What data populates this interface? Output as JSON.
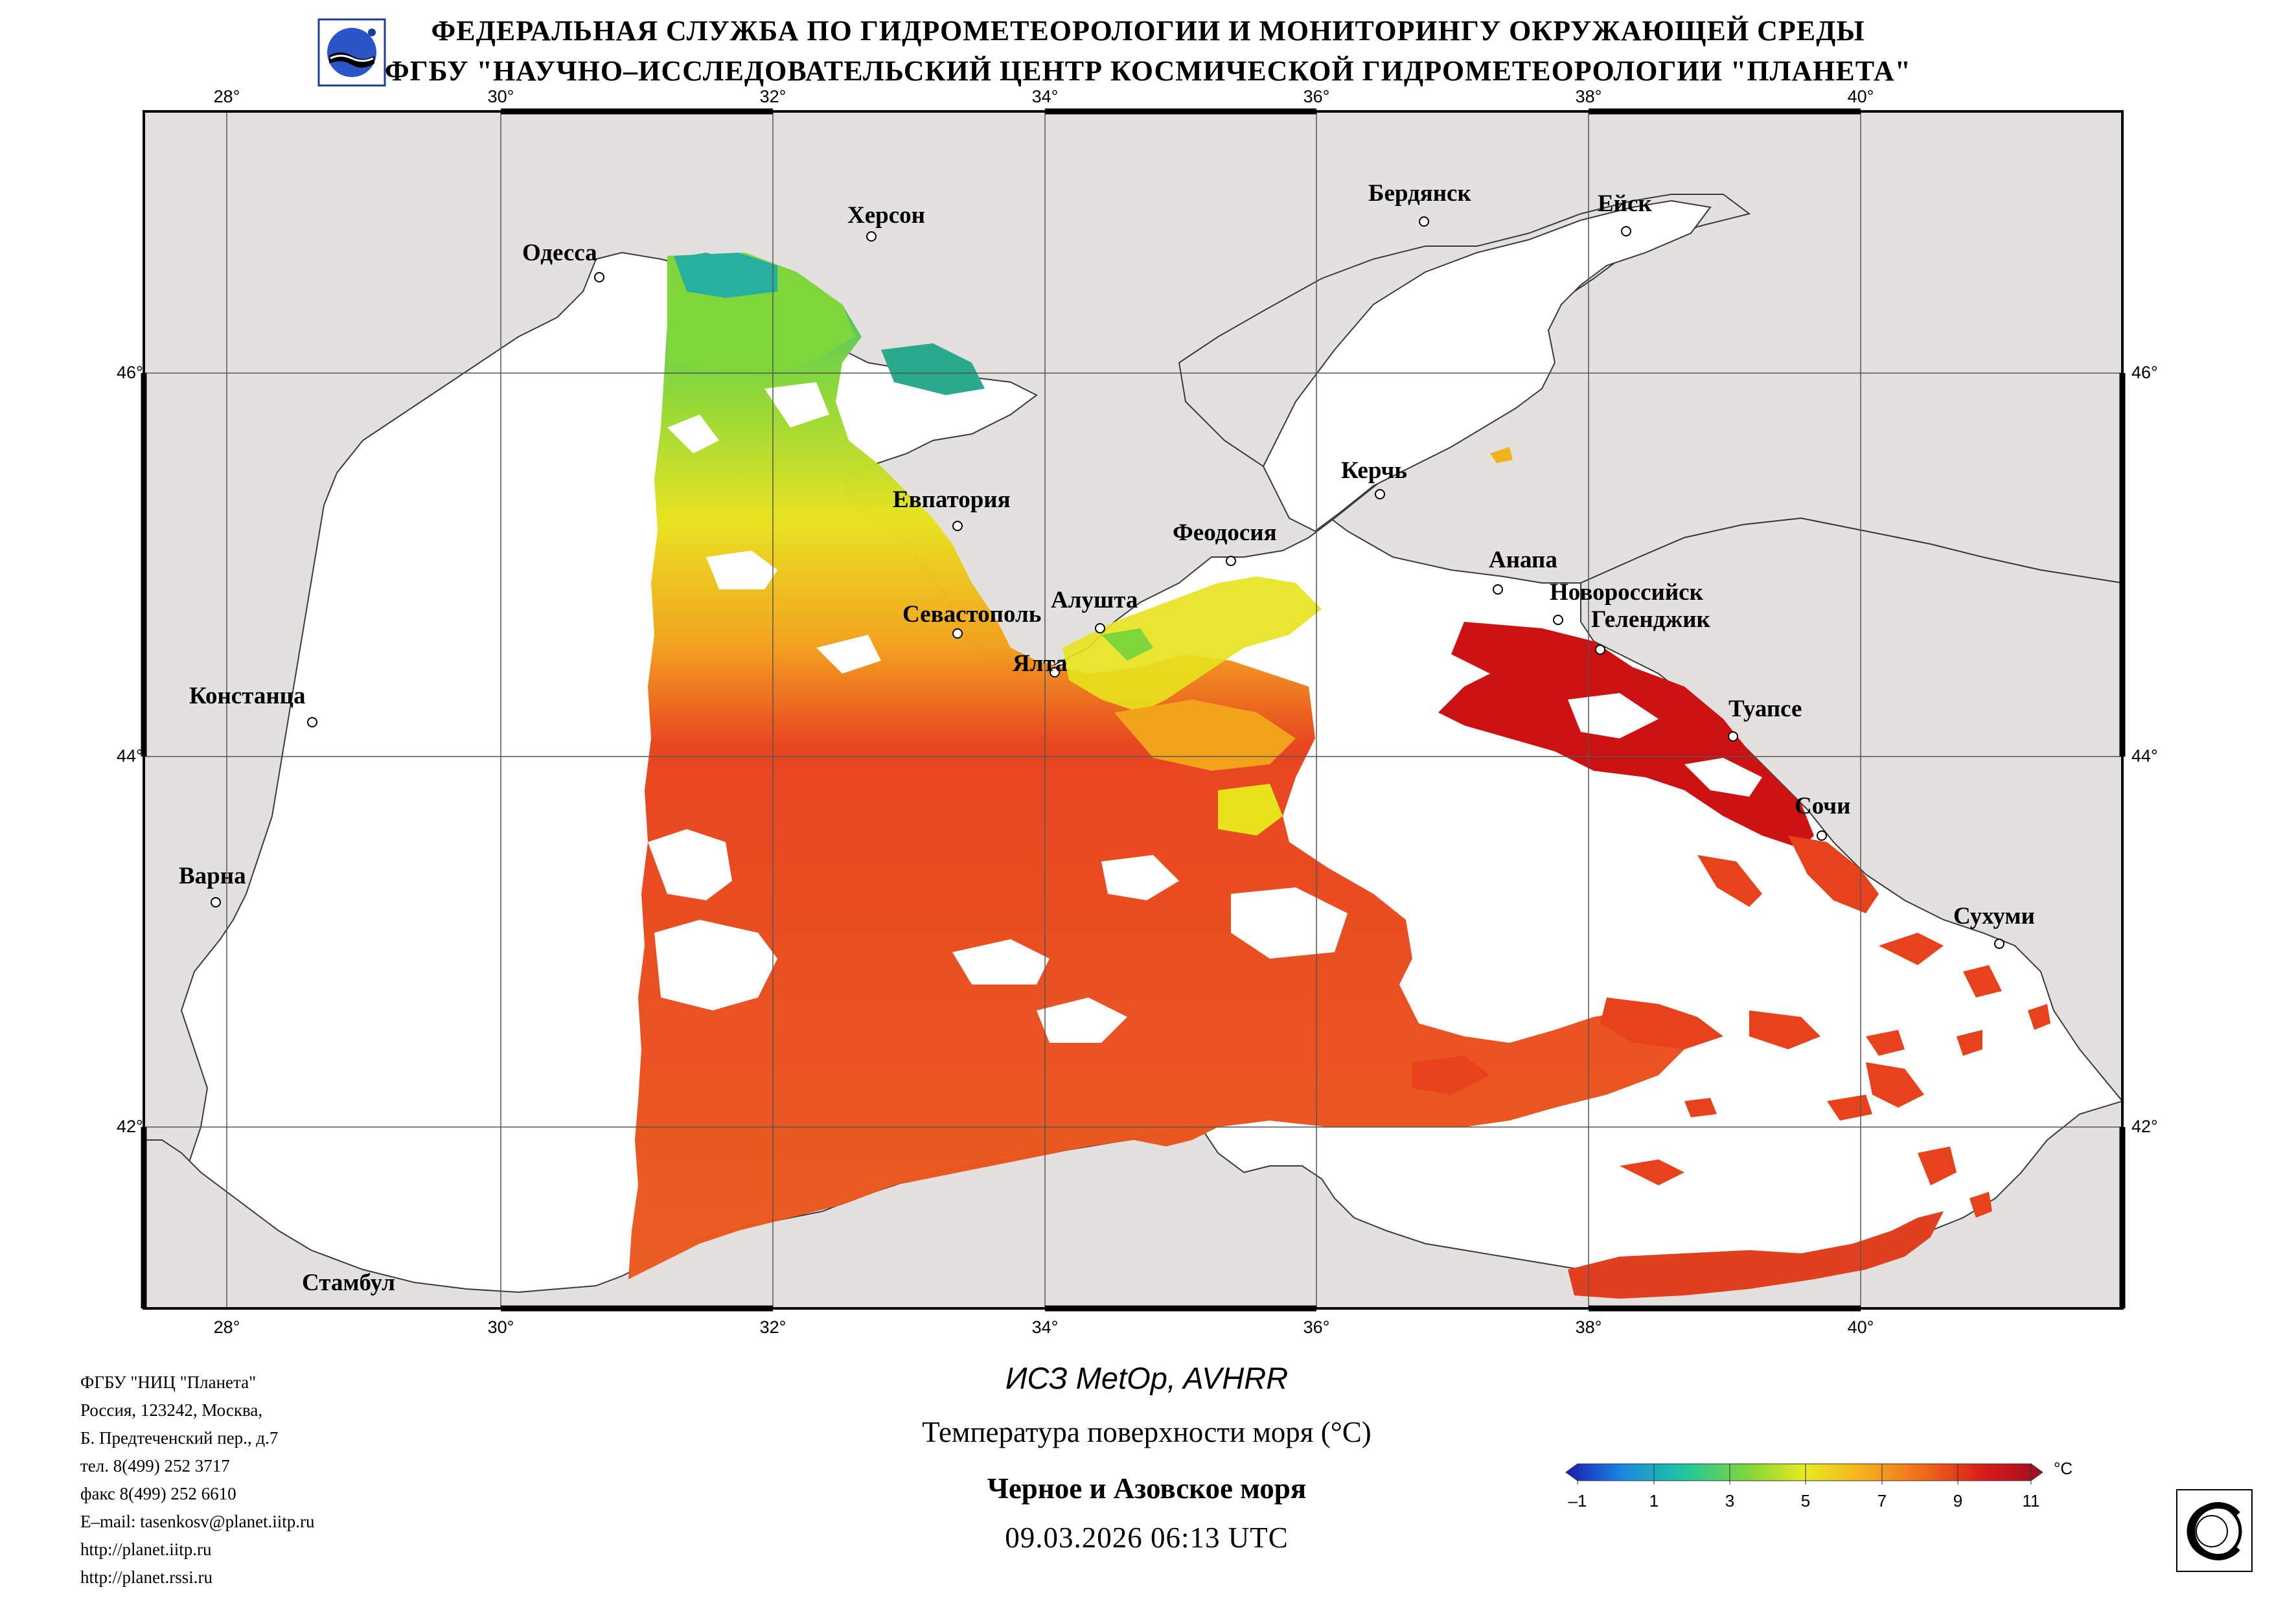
{
  "header": {
    "line1": "ФЕДЕРАЛЬНАЯ СЛУЖБА ПО ГИДРОМЕТЕОРОЛОГИИ И МОНИТОРИНГУ ОКРУЖАЮЩЕЙ СРЕДЫ",
    "line2": "ФГБУ \"НАУЧНО–ИССЛЕДОВАТЕЛЬСКИЙ ЦЕНТР КОСМИЧЕСКОЙ ГИДРОМЕТЕОРОЛОГИИ \"ПЛАНЕТА\""
  },
  "map": {
    "lon_labels": [
      "28°",
      "30°",
      "32°",
      "34°",
      "36°",
      "38°",
      "40°"
    ],
    "lat_labels": [
      "46°",
      "44°",
      "42°"
    ],
    "cities": {
      "odessa": "Одесса",
      "kherson": "Херсон",
      "berdyansk": "Бердянск",
      "eysk": "Ейск",
      "evpatoria": "Евпатория",
      "kerch": "Керчь",
      "feodosia": "Феодосия",
      "anapa": "Анапа",
      "novorossiysk": "Новороссийск",
      "gelendzhik": "Геленджик",
      "sevastopol": "Севастополь",
      "alushta": "Алушта",
      "yalta": "Ялта",
      "constanta": "Констанца",
      "tuapse": "Туапсе",
      "sochi": "Сочи",
      "varna": "Варна",
      "sukhumi": "Сухуми",
      "istanbul": "Стамбул"
    },
    "colors": {
      "land": "#e3e1dd",
      "no_data": "#ffffff",
      "warm": "#e8421c",
      "hot": "#cc1212",
      "mild": "#f2b21e",
      "cool": "#7fd63a",
      "cold": "#1e9e9e"
    }
  },
  "info": {
    "org": "ФГБУ \"НИЦ \"Планета\"",
    "addr1": "Россия, 123242, Москва,",
    "addr2": "Б. Предтеченский пер., д.7",
    "tel": "тел. 8(499) 252 3717",
    "fax": "факс 8(499) 252 6610",
    "email": "E–mail: tasenkosv@planet.iitp.ru",
    "url1": "http://planet.iitp.ru",
    "url2": "http://planet.rssi.ru"
  },
  "product": {
    "satellite": "ИСЗ MetOp, AVHRR",
    "parameter": "Температура поверхности моря (°C)",
    "region": "Черное и Азовское моря",
    "datetime": "09.03.2026 06:13 UTC"
  },
  "colorbar": {
    "unit": "°C",
    "ticks": [
      "–1",
      "1",
      "3",
      "5",
      "7",
      "9",
      "11"
    ],
    "colors": [
      "#1a1ab8",
      "#1a8ae0",
      "#1fc7a0",
      "#7fd63a",
      "#e6ea1f",
      "#f5b31d",
      "#f06a1c",
      "#d81a18",
      "#9c0f22"
    ]
  }
}
